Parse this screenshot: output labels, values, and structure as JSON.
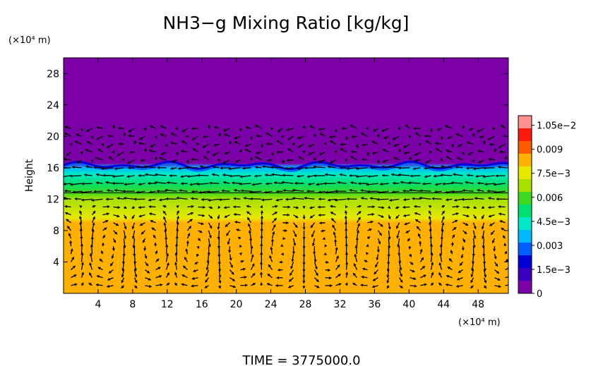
{
  "chart_data": {
    "type": "heatmap",
    "title": "NH3−g Mixing Ratio [kg/kg]",
    "footer": "TIME  =  3775000.0",
    "xlabel": "",
    "ylabel": "Height",
    "x_unit": "(×10⁴ m)",
    "y_unit": "(×10⁴ m)",
    "xlim": [
      0,
      51.5
    ],
    "ylim": [
      0,
      30
    ],
    "x_ticks": [
      4,
      8,
      12,
      16,
      20,
      24,
      28,
      32,
      36,
      40,
      44,
      48
    ],
    "y_ticks": [
      4,
      8,
      12,
      16,
      20,
      24,
      28
    ],
    "x_tick_labels": [
      "4",
      "8",
      "12",
      "16",
      "20",
      "24",
      "28",
      "32",
      "36",
      "40",
      "44",
      "48"
    ],
    "y_tick_labels": [
      "4",
      "8",
      "12",
      "16",
      "20",
      "24",
      "28"
    ],
    "colorbar": {
      "min": 0,
      "max": 0.0111,
      "tick_values": [
        0,
        0.0015,
        0.003,
        0.0045,
        0.006,
        0.0075,
        0.009,
        0.0105
      ],
      "tick_labels": [
        "0",
        "1.5e−3",
        "0.003",
        "4.5e−3",
        "0.006",
        "7.5e−3",
        "0.009",
        "1.05e−2"
      ],
      "colors": [
        "#7c00a8",
        "#3a00c0",
        "#0000d8",
        "#0060ff",
        "#00b8ff",
        "#00e8c8",
        "#00e070",
        "#40d820",
        "#a8e000",
        "#e8e800",
        "#ffb000",
        "#ff5a00",
        "#ff1a10",
        "#ff9090"
      ]
    },
    "field": {
      "profile_heights": [
        0,
        9,
        9.6,
        12,
        12.8,
        14,
        15.2,
        16,
        16.6,
        30
      ],
      "profile_values": [
        0.0082,
        0.0082,
        0.0072,
        0.0065,
        0.0058,
        0.0052,
        0.0046,
        0.0032,
        0.0,
        0.0
      ],
      "cloud_top_height": 16.3,
      "cloud_top_wave_amplitude": 0.5
    },
    "wind_field": {
      "description_rows": "lower cells, shear layer near 12-16, upper layer near 16-22",
      "levels": [
        1,
        2,
        3,
        4,
        5,
        6,
        7,
        8,
        9,
        10,
        11,
        12,
        13,
        14,
        15,
        16,
        17,
        18,
        19,
        20,
        21
      ],
      "shear_layer_u": -1.0,
      "upper_layer_u": -0.4
    }
  }
}
